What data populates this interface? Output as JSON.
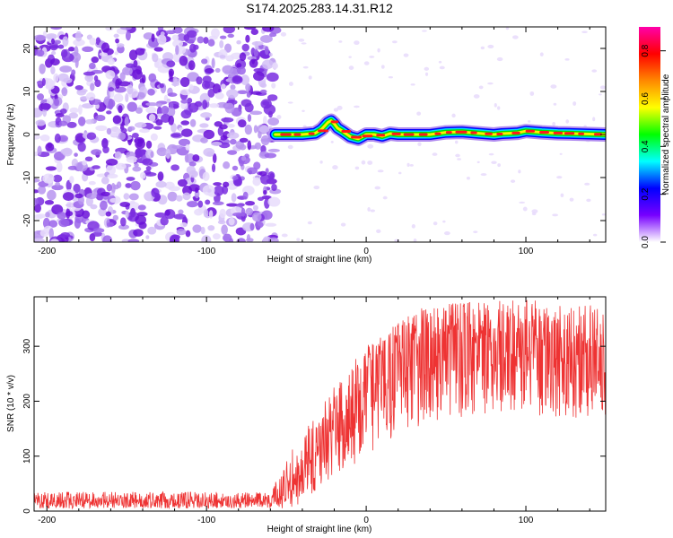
{
  "title": "S174.2025.283.14.31.R12",
  "chart_data": [
    {
      "type": "heatmap",
      "xlabel": "Height of straight line (km)",
      "ylabel": "Frequency (Hz)",
      "xlim": [
        -208,
        150
      ],
      "ylim": [
        -25,
        25
      ],
      "xticks": [
        -200,
        -100,
        0,
        100
      ],
      "yticks": [
        -20,
        -10,
        0,
        10,
        20
      ],
      "noise_region_x": [
        -208,
        -57
      ],
      "ridge": {
        "x": [
          -57,
          -48,
          -40,
          -32,
          -28,
          -24,
          -22,
          -20,
          -18,
          -15,
          -10,
          -5,
          0,
          5,
          10,
          15,
          20,
          30,
          40,
          50,
          60,
          70,
          80,
          85,
          90,
          95,
          100,
          110,
          120,
          130,
          140,
          150
        ],
        "y": [
          0,
          0,
          0,
          0.3,
          1.2,
          2.8,
          3.2,
          2.5,
          1.5,
          0.8,
          -0.5,
          -1.0,
          0,
          0,
          -0.4,
          0.2,
          0,
          0,
          0,
          0.5,
          0.6,
          0.3,
          0,
          0.2,
          0.3,
          0.4,
          0.8,
          0.5,
          0.3,
          0.2,
          0.1,
          0
        ]
      },
      "colorbar": {
        "label": "Normalized spectral amplitude",
        "ticks": [
          0.0,
          0.2,
          0.4,
          0.6,
          0.8
        ],
        "range": [
          0,
          0.9
        ],
        "colors": [
          "#ffffff",
          "#7700ff",
          "#0000ff",
          "#00ffff",
          "#00ff00",
          "#ffff00",
          "#ff8800",
          "#ff0000",
          "#ff00aa"
        ]
      }
    },
    {
      "type": "line",
      "xlabel": "Height of straight line (km)",
      "ylabel": "SNR (10 * v/v)",
      "xlim": [
        -208,
        150
      ],
      "ylim": [
        0,
        390
      ],
      "xticks": [
        -200,
        -100,
        0,
        100
      ],
      "yticks": [
        0,
        100,
        200,
        300
      ],
      "color": "#ee3333",
      "envelope": {
        "x": [
          -208,
          -60,
          -45,
          -40,
          -30,
          -20,
          -10,
          0,
          10,
          20,
          30,
          40,
          60,
          80,
          100,
          120,
          150
        ],
        "upper": [
          35,
          35,
          120,
          140,
          180,
          230,
          265,
          300,
          320,
          345,
          365,
          375,
          380,
          385,
          385,
          380,
          375
        ],
        "lower": [
          5,
          5,
          5,
          20,
          40,
          60,
          80,
          100,
          120,
          130,
          150,
          160,
          170,
          175,
          175,
          170,
          170
        ],
        "typical": [
          18,
          18,
          45,
          70,
          110,
          150,
          200,
          250,
          280,
          300,
          310,
          315,
          315,
          315,
          310,
          305,
          300
        ]
      }
    }
  ]
}
